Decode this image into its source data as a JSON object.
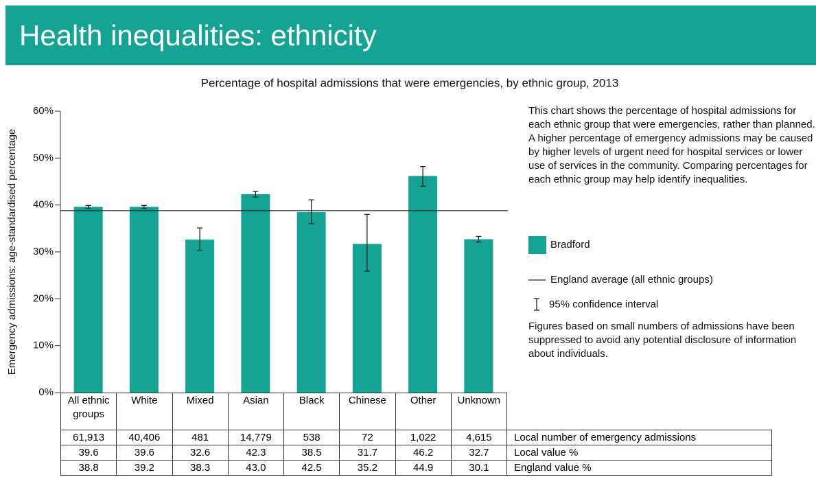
{
  "header": {
    "title": "Health inequalities: ethnicity"
  },
  "chart_data": {
    "type": "bar",
    "title": "Percentage of hospital admissions that were emergencies, by ethnic group, 2013",
    "y_label": "Emergency admissions: age-standardised percentage",
    "categories": [
      "All ethnic groups",
      "White",
      "Mixed",
      "Asian",
      "Black",
      "Chinese",
      "Other",
      "Unknown"
    ],
    "series": [
      {
        "name": "Bradford",
        "color": "#15a393",
        "values": [
          39.6,
          39.6,
          32.6,
          42.3,
          38.5,
          31.7,
          46.2,
          32.7
        ],
        "ci_low": [
          39.3,
          39.3,
          30.3,
          41.7,
          36.0,
          25.9,
          44.0,
          32.1
        ],
        "ci_high": [
          39.9,
          39.9,
          35.1,
          42.9,
          41.1,
          38.0,
          48.2,
          33.3
        ]
      }
    ],
    "reference_line": {
      "name": "England average (all ethnic groups)",
      "value": 38.8
    },
    "ci_label": "95% confidence interval",
    "ylim": [
      0,
      60
    ],
    "yticks": [
      {
        "value": 0,
        "label": "0%"
      },
      {
        "value": 10,
        "label": "10%"
      },
      {
        "value": 20,
        "label": "20%"
      },
      {
        "value": 30,
        "label": "30%"
      },
      {
        "value": 40,
        "label": "40%"
      },
      {
        "value": 50,
        "label": "50%"
      },
      {
        "value": 60,
        "label": "60%"
      }
    ]
  },
  "description": "This chart shows the percentage of hospital admissions for each ethnic group that were emergencies, rather than planned. A higher percentage of emergency admissions may be caused by higher levels of urgent need for hospital services or lower use of services in the community. Comparing percentages for each ethnic group may help identify inequalities.",
  "note": "Figures based on small numbers of admissions have been suppressed to avoid any potential disclosure of information about individuals.",
  "table": {
    "rows": [
      {
        "label": "Local number of emergency admissions",
        "cells": [
          "61,913",
          "40,406",
          "481",
          "14,779",
          "538",
          "72",
          "1,022",
          "4,615"
        ]
      },
      {
        "label": "Local value %",
        "cells": [
          "39.6",
          "39.6",
          "32.6",
          "42.3",
          "38.5",
          "31.7",
          "46.2",
          "32.7"
        ]
      },
      {
        "label": "England value %",
        "cells": [
          "38.8",
          "39.2",
          "38.3",
          "43.0",
          "42.5",
          "35.2",
          "44.9",
          "30.1"
        ]
      }
    ]
  }
}
